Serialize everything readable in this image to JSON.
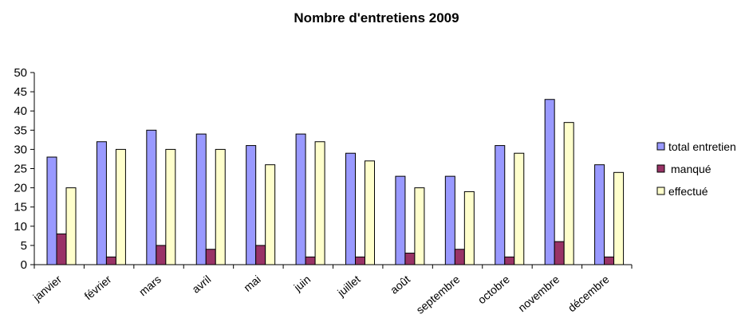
{
  "chart_data": {
    "type": "bar",
    "title": "Nombre d'entretiens 2009",
    "xlabel": "",
    "ylabel": "",
    "ylim": [
      0,
      50
    ],
    "yticks": [
      0,
      5,
      10,
      15,
      20,
      25,
      30,
      35,
      40,
      45,
      50
    ],
    "grid": false,
    "legend_position": "right",
    "categories": [
      "janvier",
      "février",
      "mars",
      "avril",
      "mai",
      "juin",
      "juillet",
      "août",
      "septembre",
      "octobre",
      "novembre",
      "décembre"
    ],
    "series": [
      {
        "name": "total entretien",
        "color": "#9999ff",
        "values": [
          28,
          32,
          35,
          34,
          31,
          34,
          29,
          23,
          23,
          31,
          43,
          26
        ]
      },
      {
        "name": "manqué",
        "color": "#993366",
        "values": [
          8,
          2,
          5,
          4,
          5,
          2,
          2,
          3,
          4,
          2,
          6,
          2
        ]
      },
      {
        "name": "effectué",
        "color": "#ffffcc",
        "values": [
          20,
          30,
          30,
          30,
          26,
          32,
          27,
          20,
          19,
          29,
          37,
          24
        ]
      }
    ]
  }
}
